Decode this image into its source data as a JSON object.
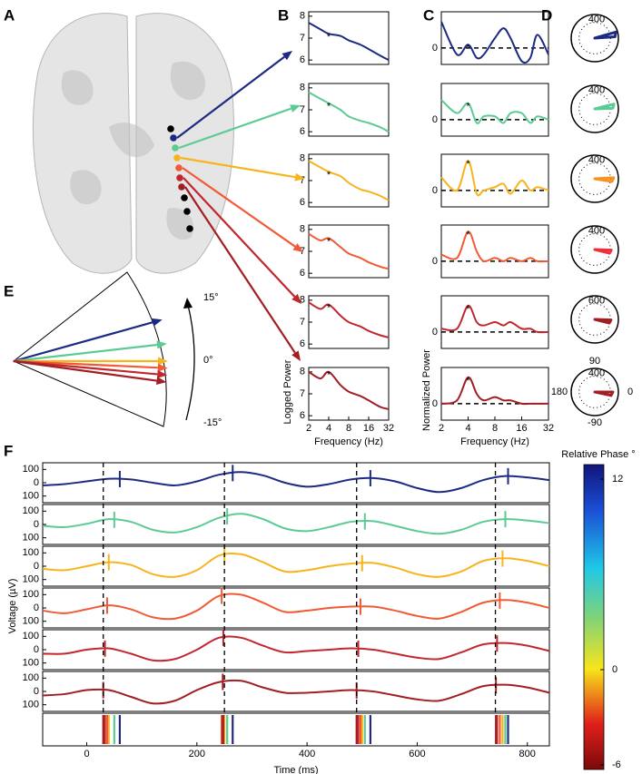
{
  "panel_labels": [
    "A",
    "B",
    "C",
    "D",
    "E",
    "F"
  ],
  "chart_data": [
    {
      "type": "line",
      "xscale": "log",
      "xlabel": "Frequency (Hz)",
      "ylabel": "Logged Power",
      "x": [
        2,
        3,
        4,
        6,
        8,
        12,
        16,
        24,
        32
      ],
      "xlim": [
        2,
        32
      ],
      "xticks": [
        2,
        4,
        8,
        16,
        32
      ],
      "ylim": [
        5.8,
        8.2
      ],
      "yticks": [
        6,
        7,
        8
      ],
      "annotations": [
        {
          "x": 4,
          "text": "*"
        }
      ],
      "series": [
        {
          "color": "#1c2a84",
          "values": [
            7.7,
            7.4,
            7.2,
            7.1,
            6.9,
            6.7,
            6.5,
            6.2,
            6.0
          ]
        },
        {
          "color": "#5ccb93",
          "values": [
            7.8,
            7.5,
            7.3,
            7.0,
            6.7,
            6.5,
            6.4,
            6.2,
            6.0
          ]
        },
        {
          "color": "#f7b41c",
          "values": [
            7.9,
            7.6,
            7.4,
            7.2,
            6.9,
            6.6,
            6.5,
            6.3,
            6.1
          ]
        },
        {
          "color": "#f05a35",
          "values": [
            7.8,
            7.5,
            7.6,
            7.2,
            6.9,
            6.7,
            6.5,
            6.3,
            6.2
          ]
        },
        {
          "color": "#c1272d",
          "values": [
            7.9,
            7.6,
            7.8,
            7.3,
            7.0,
            6.8,
            6.6,
            6.4,
            6.3
          ]
        },
        {
          "color": "#a11e23",
          "values": [
            8.0,
            7.7,
            8.0,
            7.4,
            7.1,
            6.9,
            6.7,
            6.4,
            6.3
          ]
        }
      ]
    },
    {
      "type": "line",
      "xscale": "log",
      "xlabel": "Frequency (Hz)",
      "ylabel": "Normalized Power",
      "x": [
        2,
        3,
        4,
        5,
        6,
        8,
        10,
        12,
        16,
        20,
        24,
        32
      ],
      "xlim": [
        2,
        32
      ],
      "xticks": [
        2,
        4,
        8,
        16,
        32
      ],
      "ylim": [
        -0.5,
        1.1
      ],
      "yticks": [
        0
      ],
      "hlines": [
        0
      ],
      "annotations": [
        {
          "x": 4,
          "text": "*"
        }
      ],
      "series": [
        {
          "color": "#1c2a84",
          "values": [
            0.8,
            -0.2,
            0.1,
            -0.3,
            -0.2,
            0.3,
            0.6,
            0.3,
            -0.4,
            -0.3,
            0.4,
            -0.2
          ]
        },
        {
          "color": "#5ccb93",
          "values": [
            0.6,
            0.2,
            0.5,
            -0.1,
            0.1,
            0.1,
            -0.1,
            0.2,
            0.2,
            -0.1,
            0.1,
            0.0
          ]
        },
        {
          "color": "#f7b41c",
          "values": [
            0.4,
            0.0,
            0.9,
            -0.1,
            0.0,
            0.1,
            0.2,
            -0.1,
            0.3,
            0.0,
            0.1,
            0.0
          ]
        },
        {
          "color": "#f05a35",
          "values": [
            0.2,
            0.1,
            0.9,
            0.3,
            0.0,
            0.1,
            0.0,
            0.1,
            0.0,
            0.1,
            0.0,
            0.0
          ]
        },
        {
          "color": "#c1272d",
          "values": [
            0.1,
            0.1,
            0.8,
            0.3,
            0.2,
            0.3,
            0.2,
            0.3,
            0.1,
            0.1,
            0.0,
            0.0
          ]
        },
        {
          "color": "#a11e23",
          "values": [
            0.0,
            0.1,
            0.8,
            0.3,
            0.1,
            0.2,
            0.1,
            0.1,
            0.0,
            0.0,
            0.0,
            0.0
          ]
        }
      ]
    },
    {
      "type": "polar",
      "theta_ticks": [
        90,
        180,
        0,
        -90
      ],
      "series": [
        {
          "color": "#1c2a84",
          "angle": 10,
          "radius": 560,
          "rlim": [
            0,
            600
          ],
          "rtick": 400
        },
        {
          "color": "#5ccb93",
          "angle": 8,
          "radius": 500,
          "rlim": [
            0,
            600
          ],
          "rtick": 400
        },
        {
          "color": "#f7931e",
          "angle": -3,
          "radius": 480,
          "rlim": [
            0,
            600
          ],
          "rtick": 400
        },
        {
          "color": "#ee2e3a",
          "angle": -8,
          "radius": 420,
          "rlim": [
            0,
            600
          ],
          "rtick": 400
        },
        {
          "color": "#a11e23",
          "angle": -8,
          "radius": 620,
          "rlim": [
            0,
            900
          ],
          "rtick": 600
        },
        {
          "color": "#a11e23",
          "angle": -6,
          "radius": 460,
          "rlim": [
            0,
            600
          ],
          "rtick": 400
        }
      ]
    },
    {
      "type": "arrows",
      "ylim": [
        -15,
        15
      ],
      "yticks": [
        {
          "value": 15,
          "label": "15°"
        },
        {
          "value": 0,
          "label": "0°"
        },
        {
          "value": -15,
          "label": "-15°"
        }
      ],
      "series": [
        {
          "color": "#1c2a84",
          "value": 12
        },
        {
          "color": "#5ccb93",
          "value": 5
        },
        {
          "color": "#f7b41c",
          "value": 0
        },
        {
          "color": "#f05a35",
          "value": -2
        },
        {
          "color": "#c1272d",
          "value": -4
        },
        {
          "color": "#a11e23",
          "value": -6
        }
      ]
    },
    {
      "type": "line",
      "xlabel": "Time (ms)",
      "ylabel": "Voltage (µV)",
      "x": [
        -80,
        -40,
        0,
        40,
        80,
        120,
        160,
        200,
        240,
        280,
        320,
        360,
        400,
        440,
        480,
        520,
        560,
        600,
        640,
        680,
        720,
        760,
        800,
        840
      ],
      "xlim": [
        -80,
        840
      ],
      "xticks": [
        0,
        200,
        400,
        600,
        800
      ],
      "ylim": [
        -150,
        150
      ],
      "yticks": [
        100,
        0,
        {
          "value": -100,
          "label": "100"
        }
      ],
      "vlines": [
        30,
        250,
        490,
        742
      ],
      "series": [
        {
          "color": "#1c2a84",
          "values": [
            -20,
            -10,
            10,
            30,
            25,
            0,
            -20,
            10,
            60,
            80,
            55,
            0,
            -30,
            -10,
            25,
            35,
            10,
            -40,
            -70,
            -40,
            20,
            50,
            40,
            20
          ],
          "peaks": [
            60,
            265,
            515,
            765
          ]
        },
        {
          "color": "#5ccb93",
          "values": [
            -10,
            -20,
            5,
            40,
            20,
            -40,
            -60,
            -20,
            50,
            80,
            40,
            -30,
            -50,
            -20,
            20,
            25,
            -10,
            -50,
            -70,
            -40,
            20,
            40,
            30,
            10
          ],
          "peaks": [
            50,
            255,
            505,
            760
          ]
        },
        {
          "color": "#f7b41c",
          "values": [
            -20,
            -30,
            0,
            30,
            10,
            -60,
            -80,
            -30,
            80,
            90,
            30,
            -40,
            -30,
            0,
            20,
            25,
            -10,
            -60,
            -80,
            -40,
            40,
            60,
            40,
            0
          ],
          "peaks": [
            40,
            250,
            500,
            755
          ]
        },
        {
          "color": "#f05a35",
          "values": [
            -20,
            -40,
            -10,
            20,
            -10,
            -70,
            -80,
            -20,
            90,
            100,
            40,
            -30,
            -20,
            0,
            10,
            10,
            -20,
            -60,
            -80,
            -30,
            40,
            60,
            40,
            0
          ],
          "peaks": [
            37,
            245,
            497,
            750
          ]
        },
        {
          "color": "#c1272d",
          "values": [
            -30,
            -30,
            0,
            10,
            -30,
            -80,
            -70,
            0,
            90,
            90,
            30,
            -20,
            -10,
            0,
            10,
            0,
            -30,
            -60,
            -70,
            -20,
            40,
            50,
            30,
            -10
          ],
          "peaks": [
            33,
            248,
            493,
            745
          ]
        },
        {
          "color": "#a11e23",
          "values": [
            -30,
            -20,
            10,
            10,
            -40,
            -90,
            -70,
            10,
            70,
            80,
            30,
            -10,
            -10,
            0,
            10,
            0,
            -30,
            -60,
            -70,
            -20,
            40,
            50,
            30,
            -10
          ],
          "peaks": [
            30,
            247,
            490,
            743
          ]
        }
      ],
      "colorbar": {
        "label": "Relative Phase °",
        "lim": [
          -6,
          12
        ],
        "ticks": [
          12,
          0,
          -6
        ]
      }
    }
  ]
}
